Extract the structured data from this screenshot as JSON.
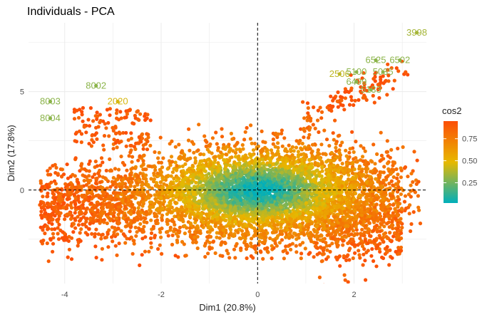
{
  "chart_data": {
    "type": "scatter",
    "title": "Individuals - PCA",
    "xlabel": "Dim1 (20.8%)",
    "ylabel": "Dim2 (17.8%)",
    "xlim": [
      -4.75,
      3.5
    ],
    "ylim": [
      -4.75,
      8.5
    ],
    "x_ticks": [
      -4,
      -2,
      0,
      2
    ],
    "y_ticks": [
      0,
      5
    ],
    "grid": true,
    "reference_lines": {
      "x": 0,
      "y": 0,
      "style": "dashed"
    },
    "color_variable": "cos2",
    "colorbar": {
      "title": "cos2",
      "ticks": [
        0.25,
        0.5,
        0.75
      ],
      "tick_labels": [
        "0.25",
        "0.50",
        "0.75"
      ],
      "range": [
        0.02,
        0.95
      ],
      "colors": [
        "#00AFBB",
        "#E7B800",
        "#FC4E07"
      ]
    },
    "labeled_points": [
      {
        "label": "3998",
        "x": 3.3,
        "y": 8.0,
        "cos2": 0.35
      },
      {
        "label": "6525",
        "x": 2.45,
        "y": 6.6,
        "cos2": 0.3
      },
      {
        "label": "6502",
        "x": 2.95,
        "y": 6.6,
        "cos2": 0.3
      },
      {
        "label": "5035",
        "x": 2.6,
        "y": 6.0,
        "cos2": 0.3
      },
      {
        "label": "2506",
        "x": 1.7,
        "y": 5.9,
        "cos2": 0.4
      },
      {
        "label": "5100",
        "x": 2.05,
        "y": 6.0,
        "cos2": 0.3
      },
      {
        "label": "6499",
        "x": 2.05,
        "y": 5.5,
        "cos2": 0.3
      },
      {
        "label": "5133",
        "x": 2.35,
        "y": 5.1,
        "cos2": 0.3
      },
      {
        "label": "8002",
        "x": -3.35,
        "y": 5.3,
        "cos2": 0.3
      },
      {
        "label": "8003",
        "x": -4.3,
        "y": 4.5,
        "cos2": 0.3
      },
      {
        "label": "2020",
        "x": -2.9,
        "y": 4.5,
        "cos2": 0.45
      },
      {
        "label": "8004",
        "x": -4.3,
        "y": 3.65,
        "cos2": 0.3
      }
    ],
    "n_points_approx": 6000
  }
}
